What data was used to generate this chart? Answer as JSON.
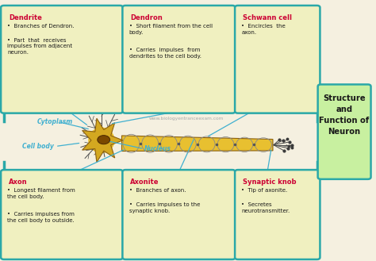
{
  "title": "Structure\nand\nFunction of\nNeuron",
  "bg_color": "#f5f0e0",
  "box_bg": "#f0f0c0",
  "box_border": "#2aa8a8",
  "title_box_bg": "#c8f0a0",
  "heading_color": "#cc0033",
  "text_color": "#1a1a1a",
  "label_color": "#40b0d0",
  "watermark": "www.biologyentranceexam.com",
  "top_boxes": [
    {
      "heading": "Dendrite",
      "lines": [
        "Branches of Dendron.",
        "Part  that  receives\nimpulses from adjacent\nneuron."
      ]
    },
    {
      "heading": "Dendron",
      "lines": [
        "Short filament from the cell\nbody.",
        "Carries  impulses  from\ndendrites to the cell body."
      ]
    },
    {
      "heading": "Schwann cell",
      "lines": [
        "Encircles  the\naxon."
      ]
    }
  ],
  "bot_boxes": [
    {
      "heading": "Axon",
      "lines": [
        "Longest filament from\nthe cell body.",
        "Carries impulses from\nthe cell body to outside."
      ]
    },
    {
      "heading": "Axonite",
      "lines": [
        "Branches of axon.",
        "Carries impulses to the\nsynaptic knob."
      ]
    },
    {
      "heading": "Synaptic knob",
      "lines": [
        "Tip of axonite.",
        "Secretes\nneurotransmitter."
      ]
    }
  ]
}
